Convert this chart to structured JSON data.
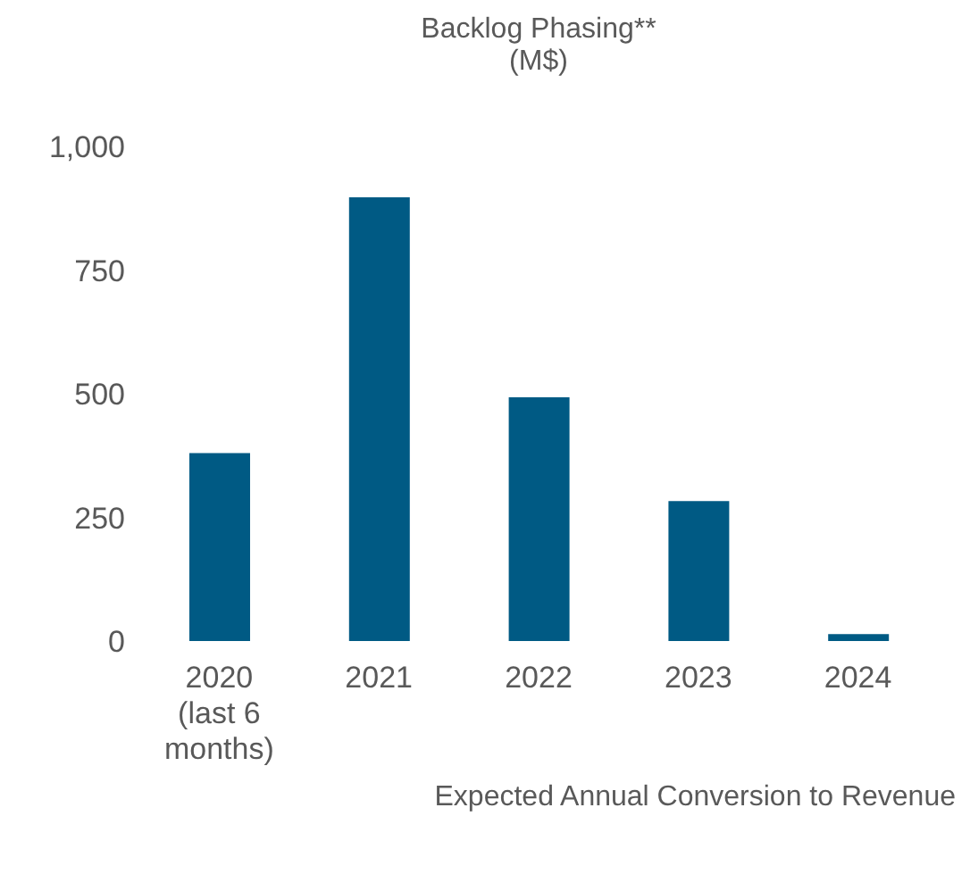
{
  "chart_data": {
    "type": "bar",
    "title": "Backlog Phasing**",
    "subtitle": "(M$)",
    "xlabel": "Expected Annual Conversion to Revenue",
    "categories": [
      "2020 (last 6 months)",
      "2021",
      "2022",
      "2023",
      "2024"
    ],
    "values": [
      380,
      897,
      493,
      283,
      14
    ],
    "color": "#005a84",
    "ylim": [
      0,
      1000
    ],
    "yticks": [
      0,
      {
        "value": 250,
        "label": "250"
      },
      {
        "value": 500,
        "label": "500"
      },
      {
        "value": 750,
        "label": "750"
      },
      {
        "value": 1000,
        "label": "1,000"
      }
    ],
    "grid": false,
    "legend": false
  }
}
